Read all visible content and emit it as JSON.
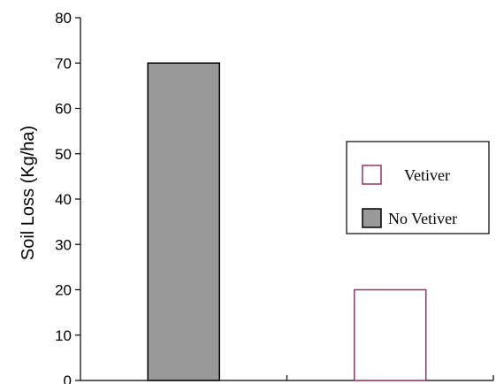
{
  "chart_data": {
    "type": "bar",
    "title": "",
    "xlabel": "",
    "ylabel": "Soil Loss (Kg/ha)",
    "ylim": [
      0,
      80
    ],
    "yticks": [
      0,
      10,
      20,
      30,
      40,
      50,
      60,
      70,
      80
    ],
    "grid": false,
    "legend_position": "right",
    "series": [
      {
        "name": "No Vetiver",
        "value": 70,
        "fill": "#999999",
        "stroke": "#000000"
      },
      {
        "name": "Vetiver",
        "value": 20,
        "fill": "#ffffff",
        "stroke": "#993366"
      }
    ],
    "legend": [
      {
        "label": "Vetiver",
        "swatch_fill": "#ffffff",
        "swatch_stroke": "#993366"
      },
      {
        "label": "No Vetiver",
        "swatch_fill": "#999999",
        "swatch_stroke": "#000000"
      }
    ]
  }
}
